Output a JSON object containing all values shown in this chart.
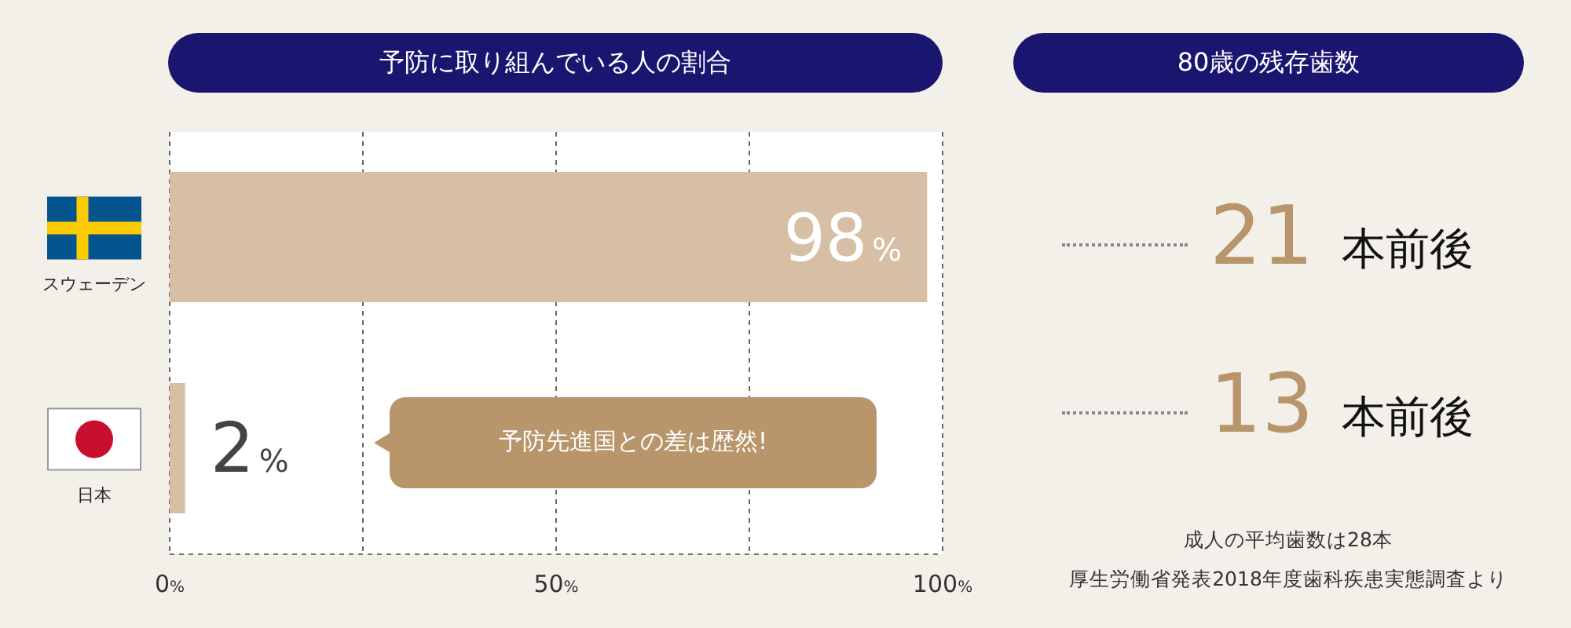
{
  "chart_data": [
    {
      "type": "bar",
      "orientation": "horizontal",
      "title": "予防に取り組んでいる人の割合",
      "categories": [
        "スウェーデン",
        "日本"
      ],
      "values": [
        98,
        2
      ],
      "color": "#d6bfa4",
      "value_labels": [
        "98%",
        "2%"
      ],
      "xlim": [
        0,
        100
      ],
      "xticks": [
        {
          "value": 0,
          "label": "0%"
        },
        {
          "value": 25,
          "label": null
        },
        {
          "value": 50,
          "label": "50%"
        },
        {
          "value": 75,
          "label": null
        },
        {
          "value": 100,
          "label": "100%"
        }
      ],
      "grid": "x",
      "annotations": [
        "予防先進国との差は歴然!"
      ]
    },
    {
      "type": "other",
      "title": "80歳の残存歯数",
      "values": [
        21,
        13
      ],
      "value_labels": [
        "21 本前後",
        "13 本前後"
      ],
      "color": "#b8956a",
      "annotations": [
        "成人の平均歯数は28本",
        "厚生労働省発表2018年度歯科疾患実態調査より"
      ]
    }
  ]
}
